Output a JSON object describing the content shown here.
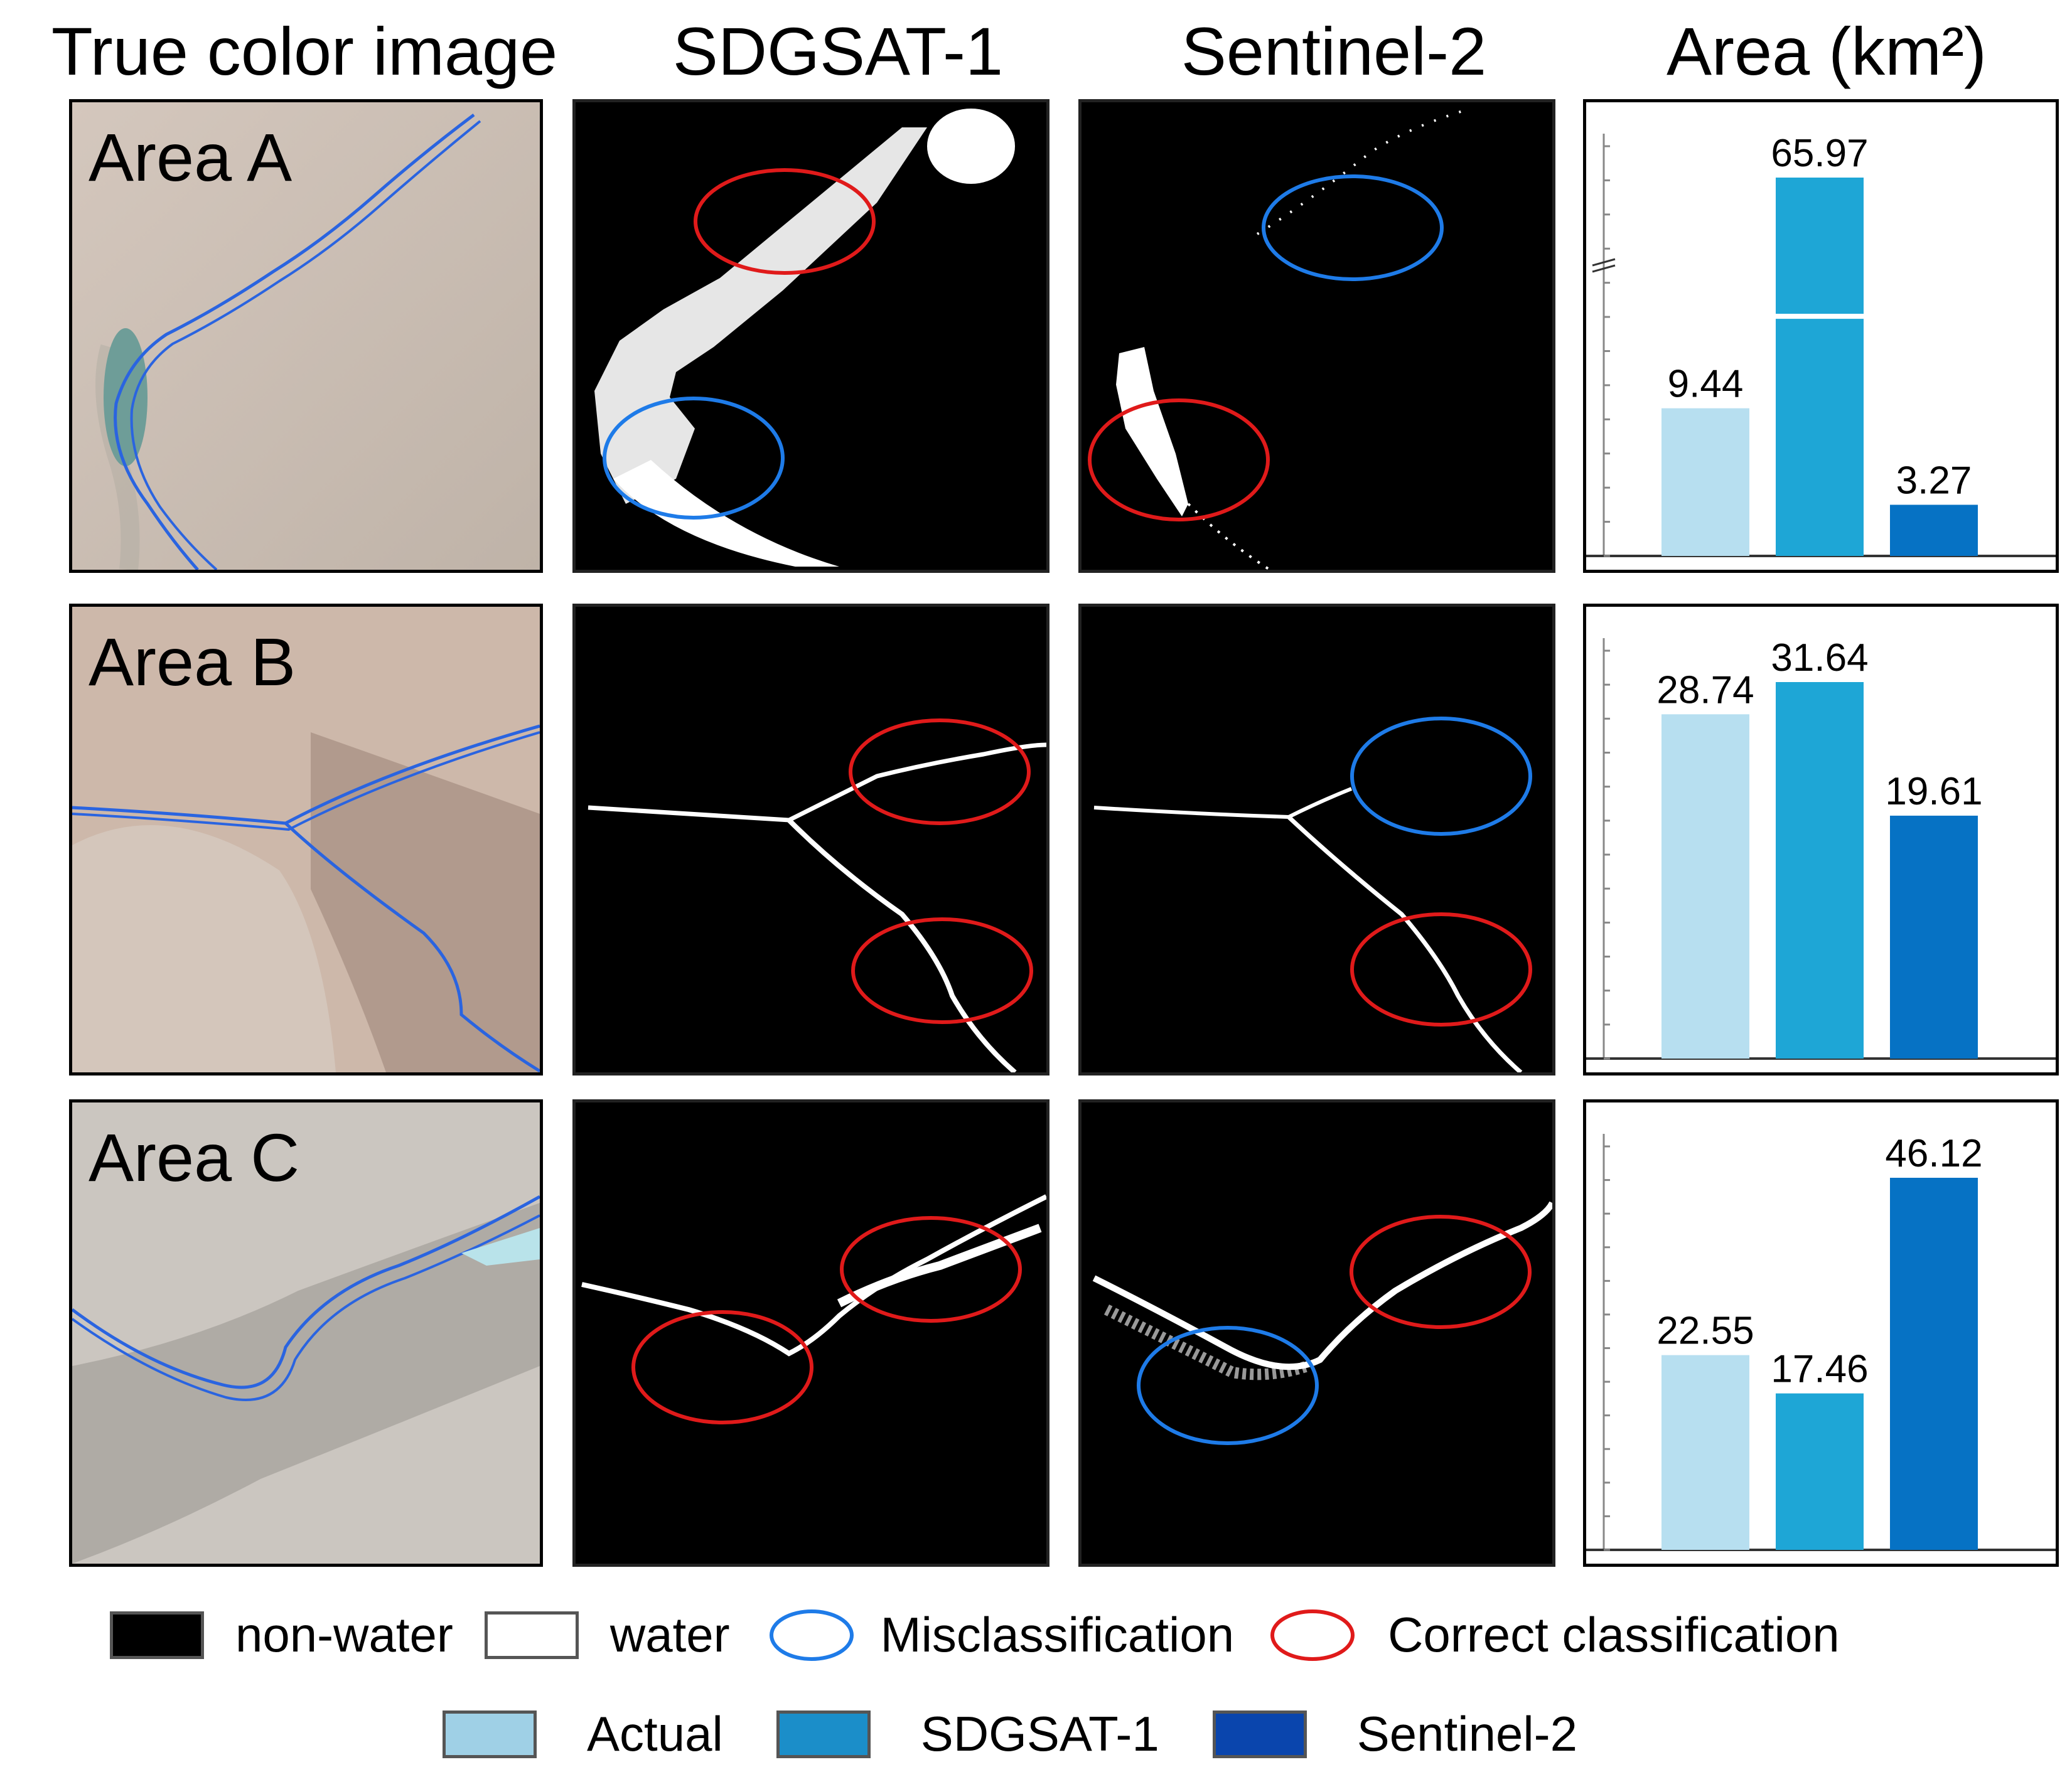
{
  "headers": {
    "col1": "True color image",
    "col2": "SDGSAT-1",
    "col3": "Sentinel-2",
    "col4": "Area (km²)"
  },
  "rows": [
    {
      "label": "Area A"
    },
    {
      "label": "Area B"
    },
    {
      "label": "Area C"
    }
  ],
  "colors": {
    "actual": "#b7dff0",
    "sdgsat": "#1ea6d6",
    "sentinel": "#0672c4",
    "river_outline": "#2a64e0",
    "misclassification": "#1e7be8",
    "correct_classification": "#e01a1a"
  },
  "chart_data": [
    {
      "type": "bar",
      "categories": [
        "Actual",
        "SDGSAT-1",
        "Sentinel-2"
      ],
      "values": [
        9.44,
        65.97,
        3.27
      ],
      "labels": [
        "9.44",
        "65.97",
        "3.27"
      ],
      "axis_break": true,
      "grid": false
    },
    {
      "type": "bar",
      "categories": [
        "Actual",
        "SDGSAT-1",
        "Sentinel-2"
      ],
      "values": [
        28.74,
        31.64,
        19.61
      ],
      "labels": [
        "28.74",
        "31.64",
        "19.61"
      ],
      "axis_break": false,
      "grid": false
    },
    {
      "type": "bar",
      "categories": [
        "Actual",
        "SDGSAT-1",
        "Sentinel-2"
      ],
      "values": [
        22.55,
        17.46,
        46.12
      ],
      "labels": [
        "22.55",
        "17.46",
        "46.12"
      ],
      "axis_break": false,
      "grid": false
    }
  ],
  "legend": {
    "row1": [
      {
        "label": "non-water",
        "kind": "swatch",
        "color": "#000000"
      },
      {
        "label": "water",
        "kind": "swatch",
        "color": "#ffffff"
      },
      {
        "label": "Misclassification",
        "kind": "ellipse",
        "color": "#1e7be8"
      },
      {
        "label": "Correct classification",
        "kind": "ellipse",
        "color": "#e01a1a"
      }
    ],
    "row2": [
      {
        "label": "Actual",
        "kind": "swatch",
        "color": "#9fd0e6"
      },
      {
        "label": "SDGSAT-1",
        "kind": "swatch",
        "color": "#1b8ec9"
      },
      {
        "label": "Sentinel-2",
        "kind": "swatch",
        "color": "#0a45ad"
      }
    ]
  }
}
